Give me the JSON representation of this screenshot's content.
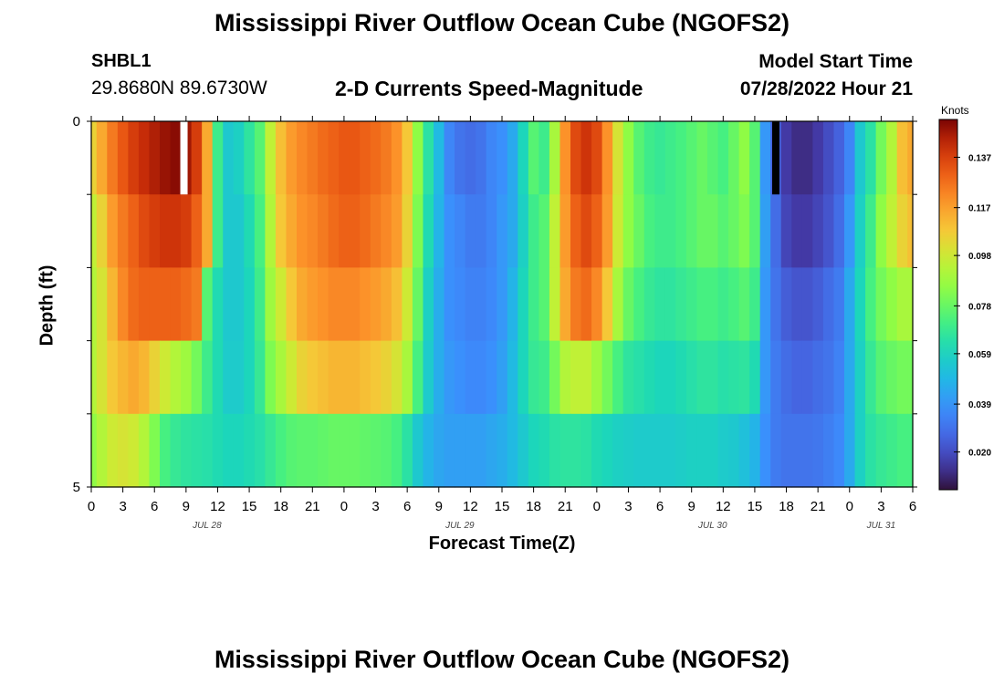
{
  "page": {
    "title": "Mississippi River Outflow Ocean Cube (NGOFS2)",
    "title_repeat": "Mississippi River Outflow Ocean Cube (NGOFS2)"
  },
  "header": {
    "station": "SHBL1",
    "coords": "29.8680N  89.6730W",
    "subtitle": "2-D Currents Speed-Magnitude",
    "model_start_label": "Model Start Time",
    "model_start_value": "07/28/2022 Hour 21"
  },
  "colorbar": {
    "unit": "Knots",
    "vmin": 0.005,
    "vmax": 0.152,
    "ticks": [
      0.02,
      0.039,
      0.059,
      0.078,
      0.098,
      0.117,
      0.137
    ],
    "tick_labels": [
      "0.020",
      "0.039",
      "0.059",
      "0.078",
      "0.098",
      "0.117",
      "0.137"
    ]
  },
  "chart_data": {
    "type": "heatmap",
    "title": "2-D Currents Speed-Magnitude",
    "xlabel": "Forecast Time(Z)",
    "ylabel": "Depth (ft)",
    "y_range": [
      0,
      5
    ],
    "y_tick_labels": [
      "0",
      "5"
    ],
    "x_range_hours": [
      0,
      78
    ],
    "x_tick_labels": [
      "0",
      "3",
      "6",
      "9",
      "12",
      "15",
      "18",
      "21",
      "0",
      "3",
      "6",
      "9",
      "12",
      "15",
      "18",
      "21",
      "0",
      "3",
      "6",
      "9",
      "12",
      "15",
      "18",
      "21",
      "0",
      "3",
      "6"
    ],
    "date_labels": [
      {
        "text": "JUL 28",
        "hour": 11
      },
      {
        "text": "JUL 29",
        "hour": 35
      },
      {
        "text": "JUL 30",
        "hour": 59
      },
      {
        "text": "JUL 31",
        "hour": 75
      }
    ],
    "depth_layers": [
      0,
      1,
      2,
      3,
      4
    ],
    "hours": [
      0,
      1,
      2,
      3,
      4,
      5,
      6,
      7,
      8,
      9,
      10,
      11,
      12,
      13,
      14,
      15,
      16,
      17,
      18,
      19,
      20,
      21,
      22,
      23,
      24,
      25,
      26,
      27,
      28,
      29,
      30,
      31,
      32,
      33,
      34,
      35,
      36,
      37,
      38,
      39,
      40,
      41,
      42,
      43,
      44,
      45,
      46,
      47,
      48,
      49,
      50,
      51,
      52,
      53,
      54,
      55,
      56,
      57,
      58,
      59,
      60,
      61,
      62,
      63,
      64,
      65,
      66,
      67,
      68,
      69,
      70,
      71,
      72,
      73,
      74,
      75,
      76,
      77,
      78
    ],
    "speed_knots": [
      [
        0.105,
        0.115,
        0.125,
        0.132,
        0.138,
        0.142,
        0.145,
        0.148,
        0.15,
        0.147,
        0.138,
        0.115,
        0.07,
        0.055,
        0.058,
        0.066,
        0.075,
        0.095,
        0.11,
        0.118,
        0.122,
        0.125,
        0.128,
        0.13,
        0.132,
        0.132,
        0.13,
        0.128,
        0.125,
        0.12,
        0.108,
        0.085,
        0.065,
        0.05,
        0.035,
        0.03,
        0.028,
        0.03,
        0.035,
        0.038,
        0.045,
        0.06,
        0.075,
        0.07,
        0.09,
        0.12,
        0.135,
        0.14,
        0.135,
        0.12,
        0.1,
        0.085,
        0.075,
        0.07,
        0.068,
        0.07,
        0.072,
        0.075,
        0.078,
        0.075,
        0.072,
        0.078,
        0.085,
        0.075,
        0.04,
        0.025,
        0.015,
        0.012,
        0.012,
        0.015,
        0.02,
        0.025,
        0.035,
        0.055,
        0.065,
        0.08,
        0.092,
        0.11,
        0.115
      ],
      [
        0.095,
        0.105,
        0.118,
        0.125,
        0.13,
        0.135,
        0.138,
        0.14,
        0.14,
        0.138,
        0.13,
        0.115,
        0.07,
        0.055,
        0.055,
        0.062,
        0.072,
        0.092,
        0.108,
        0.115,
        0.12,
        0.122,
        0.125,
        0.128,
        0.13,
        0.13,
        0.128,
        0.125,
        0.122,
        0.118,
        0.105,
        0.082,
        0.062,
        0.048,
        0.038,
        0.035,
        0.032,
        0.032,
        0.035,
        0.04,
        0.045,
        0.058,
        0.07,
        0.075,
        0.095,
        0.118,
        0.13,
        0.135,
        0.13,
        0.118,
        0.098,
        0.085,
        0.078,
        0.072,
        0.07,
        0.07,
        0.072,
        0.075,
        0.078,
        0.078,
        0.075,
        0.078,
        0.082,
        0.075,
        0.042,
        0.028,
        0.018,
        0.015,
        0.015,
        0.018,
        0.022,
        0.028,
        0.04,
        0.058,
        0.07,
        0.085,
        0.095,
        0.105,
        0.11
      ],
      [
        0.092,
        0.1,
        0.112,
        0.122,
        0.128,
        0.13,
        0.13,
        0.13,
        0.13,
        0.128,
        0.125,
        0.075,
        0.062,
        0.055,
        0.055,
        0.06,
        0.07,
        0.088,
        0.098,
        0.108,
        0.115,
        0.118,
        0.12,
        0.122,
        0.122,
        0.122,
        0.12,
        0.118,
        0.115,
        0.11,
        0.098,
        0.078,
        0.058,
        0.046,
        0.038,
        0.036,
        0.034,
        0.034,
        0.036,
        0.04,
        0.048,
        0.06,
        0.07,
        0.075,
        0.095,
        0.115,
        0.125,
        0.128,
        0.122,
        0.108,
        0.09,
        0.078,
        0.072,
        0.068,
        0.066,
        0.066,
        0.068,
        0.07,
        0.072,
        0.072,
        0.07,
        0.072,
        0.075,
        0.07,
        0.04,
        0.03,
        0.024,
        0.022,
        0.022,
        0.024,
        0.028,
        0.032,
        0.045,
        0.06,
        0.072,
        0.08,
        0.085,
        0.09,
        0.09
      ],
      [
        0.092,
        0.1,
        0.108,
        0.112,
        0.115,
        0.112,
        0.105,
        0.098,
        0.092,
        0.088,
        0.08,
        0.07,
        0.062,
        0.056,
        0.056,
        0.06,
        0.068,
        0.082,
        0.09,
        0.098,
        0.105,
        0.108,
        0.11,
        0.112,
        0.112,
        0.112,
        0.11,
        0.108,
        0.105,
        0.1,
        0.09,
        0.072,
        0.056,
        0.046,
        0.04,
        0.038,
        0.036,
        0.036,
        0.038,
        0.042,
        0.05,
        0.06,
        0.068,
        0.07,
        0.08,
        0.092,
        0.095,
        0.095,
        0.088,
        0.08,
        0.072,
        0.066,
        0.064,
        0.062,
        0.06,
        0.06,
        0.062,
        0.064,
        0.066,
        0.066,
        0.064,
        0.065,
        0.066,
        0.062,
        0.04,
        0.032,
        0.028,
        0.026,
        0.026,
        0.028,
        0.03,
        0.034,
        0.045,
        0.058,
        0.068,
        0.075,
        0.078,
        0.08,
        0.08
      ],
      [
        0.085,
        0.092,
        0.098,
        0.1,
        0.098,
        0.092,
        0.082,
        0.072,
        0.068,
        0.066,
        0.065,
        0.064,
        0.062,
        0.06,
        0.06,
        0.062,
        0.064,
        0.068,
        0.072,
        0.075,
        0.076,
        0.076,
        0.077,
        0.078,
        0.078,
        0.078,
        0.077,
        0.076,
        0.075,
        0.072,
        0.065,
        0.055,
        0.048,
        0.044,
        0.042,
        0.042,
        0.042,
        0.042,
        0.044,
        0.046,
        0.05,
        0.055,
        0.06,
        0.062,
        0.065,
        0.066,
        0.066,
        0.065,
        0.062,
        0.06,
        0.058,
        0.057,
        0.056,
        0.056,
        0.056,
        0.056,
        0.057,
        0.058,
        0.058,
        0.058,
        0.056,
        0.055,
        0.052,
        0.048,
        0.038,
        0.032,
        0.03,
        0.03,
        0.03,
        0.031,
        0.033,
        0.036,
        0.045,
        0.058,
        0.065,
        0.068,
        0.07,
        0.072,
        0.072
      ]
    ],
    "masked_cells": [
      {
        "layer": 0,
        "hour": 8.8,
        "color": "#ffffff"
      },
      {
        "layer": 0,
        "hour": 65,
        "color": "#000000"
      }
    ]
  }
}
